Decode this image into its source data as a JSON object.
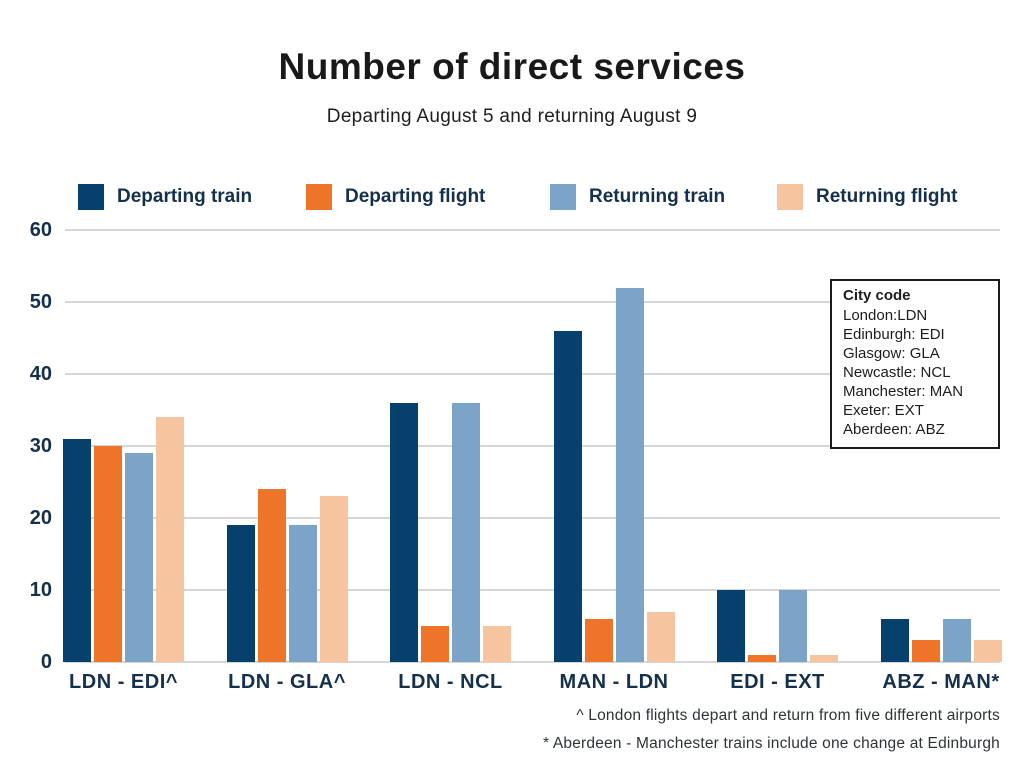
{
  "title": "Number of direct services",
  "subtitle": "Departing August 5 and returning August 9",
  "colors": {
    "text_navy": "#15304a",
    "grid": "#d6d6d6",
    "navy": "#06416d",
    "orange": "#ed7428",
    "steel_blue": "#7ba4c8",
    "peach": "#f6c5a0"
  },
  "chart_data": {
    "type": "bar",
    "title": "Number of direct services",
    "subtitle": "Departing August 5 and returning August 9",
    "categories": [
      "LDN - EDI^",
      "LDN - GLA^",
      "LDN - NCL",
      "MAN - LDN",
      "EDI - EXT",
      "ABZ - MAN*"
    ],
    "series": [
      {
        "name": "Departing train",
        "color": "#06416d",
        "values": [
          31,
          19,
          36,
          46,
          10,
          6
        ]
      },
      {
        "name": "Departing flight",
        "color": "#ed7428",
        "values": [
          30,
          24,
          5,
          6,
          1,
          3
        ]
      },
      {
        "name": "Returning train",
        "color": "#7ba4c8",
        "values": [
          29,
          19,
          36,
          52,
          10,
          6
        ]
      },
      {
        "name": "Returning flight",
        "color": "#f6c5a0",
        "values": [
          34,
          23,
          5,
          7,
          1,
          3
        ]
      }
    ],
    "ylabel": "",
    "xlabel": "",
    "ylim": [
      0,
      60
    ],
    "yticks": [
      0,
      10,
      20,
      30,
      40,
      50,
      60
    ],
    "grid": true,
    "legend_position": "top"
  },
  "city_code_box": {
    "title": "City code",
    "entries": [
      "London:LDN",
      "Edinburgh: EDI",
      "Glasgow: GLA",
      "Newcastle: NCL",
      "Manchester: MAN",
      "Exeter: EXT",
      "Aberdeen: ABZ"
    ]
  },
  "footnotes": [
    "^ London flights depart and return from five different airports",
    "* Aberdeen - Manchester trains include one change at Edinburgh"
  ]
}
